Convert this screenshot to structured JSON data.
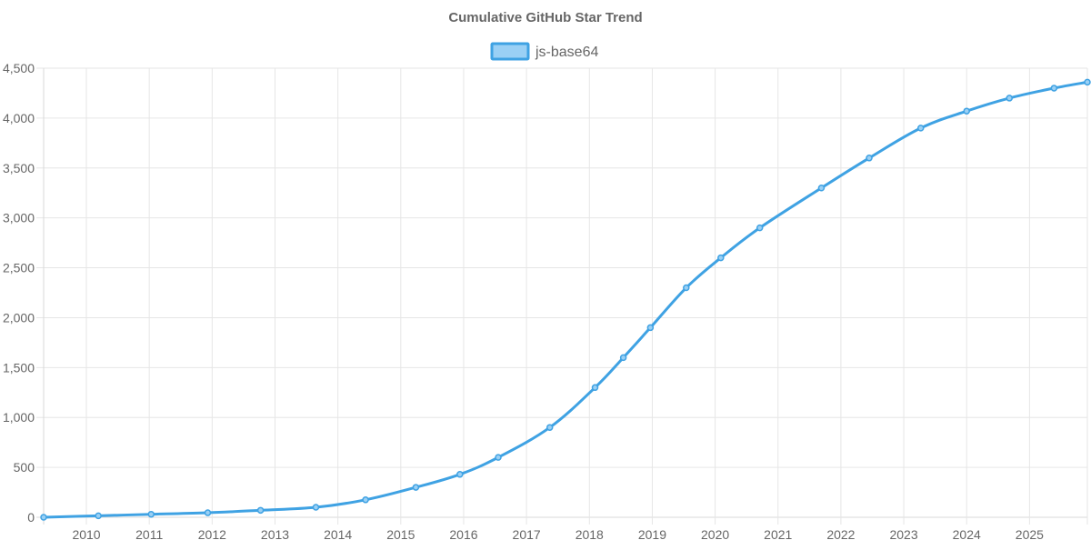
{
  "chart_data": {
    "type": "line",
    "title": "Cumulative GitHub Star Trend",
    "legend": {
      "position": "top-center"
    },
    "xlabel": "",
    "ylabel": "",
    "xlim": [
      2009.32,
      2025.92
    ],
    "ylim": [
      0,
      4500
    ],
    "x_ticks": [
      2010,
      2011,
      2012,
      2013,
      2014,
      2015,
      2016,
      2017,
      2018,
      2019,
      2020,
      2021,
      2022,
      2023,
      2024,
      2025
    ],
    "y_ticks": [
      0,
      500,
      1000,
      1500,
      2000,
      2500,
      3000,
      3500,
      4000,
      4500
    ],
    "grid": true,
    "series": [
      {
        "name": "js-base64",
        "color": "#3fa2e3",
        "fill_color": "#9ad0f5",
        "points": [
          {
            "x": 2009.32,
            "y": 0
          },
          {
            "x": 2010.19,
            "y": 15
          },
          {
            "x": 2011.03,
            "y": 30
          },
          {
            "x": 2011.93,
            "y": 45
          },
          {
            "x": 2012.77,
            "y": 70
          },
          {
            "x": 2013.65,
            "y": 100
          },
          {
            "x": 2014.44,
            "y": 175
          },
          {
            "x": 2015.24,
            "y": 300
          },
          {
            "x": 2015.94,
            "y": 430
          },
          {
            "x": 2016.55,
            "y": 600
          },
          {
            "x": 2017.37,
            "y": 900
          },
          {
            "x": 2018.09,
            "y": 1300
          },
          {
            "x": 2018.54,
            "y": 1600
          },
          {
            "x": 2018.97,
            "y": 1900
          },
          {
            "x": 2019.54,
            "y": 2300
          },
          {
            "x": 2020.09,
            "y": 2600
          },
          {
            "x": 2020.71,
            "y": 2900
          },
          {
            "x": 2021.69,
            "y": 3300
          },
          {
            "x": 2022.45,
            "y": 3600
          },
          {
            "x": 2023.27,
            "y": 3900
          },
          {
            "x": 2024.0,
            "y": 4070
          },
          {
            "x": 2024.68,
            "y": 4200
          },
          {
            "x": 2025.39,
            "y": 4300
          },
          {
            "x": 2025.92,
            "y": 4360
          }
        ]
      }
    ]
  }
}
